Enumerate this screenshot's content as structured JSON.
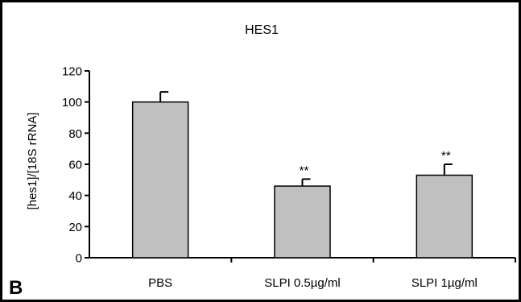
{
  "panel_label": "B",
  "chart_data": {
    "type": "bar",
    "title": "HES1",
    "ylabel": "[hes1]/[18S rRNA]",
    "xlabel": "",
    "categories": [
      "PBS",
      "SLPI 0.5µg/ml",
      "SLPI 1µg/ml"
    ],
    "values": [
      100,
      46,
      53
    ],
    "errors": [
      6.5,
      4.5,
      7
    ],
    "annotations": [
      "",
      "**",
      "**"
    ],
    "ylim": [
      0,
      120
    ],
    "yticks": [
      0,
      20,
      40,
      60,
      80,
      100,
      120
    ],
    "grid": false,
    "legend": "none",
    "bar_color": "#c0c0c0",
    "edge_color": "#000000"
  }
}
